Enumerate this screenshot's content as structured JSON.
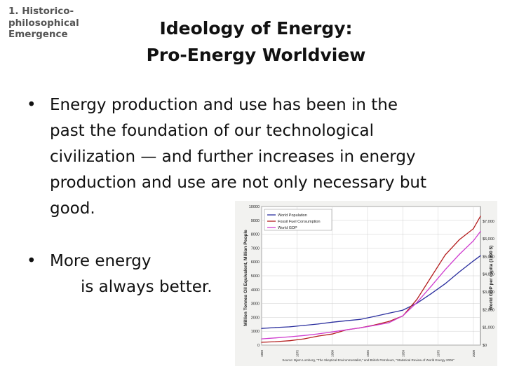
{
  "section_label": [
    "1. Historico-",
    "philosophical",
    "Emergence"
  ],
  "title": [
    "Ideology of Energy:",
    "Pro-Energy Worldview"
  ],
  "bullets": [
    {
      "lines": [
        "Energy production and use has been in the",
        "past the foundation of our technological",
        "civilization — and further increases in energy",
        "production and use are not only necessary but",
        "good."
      ]
    },
    {
      "lines": [
        "More energy",
        "is always better."
      ]
    }
  ],
  "bullet_symbol": "•",
  "chart_data": {
    "type": "line",
    "x": [
      1850,
      1860,
      1870,
      1880,
      1890,
      1900,
      1910,
      1920,
      1930,
      1940,
      1950,
      1960,
      1970,
      1980,
      1990,
      2000,
      2005
    ],
    "xlim": [
      1850,
      2005
    ],
    "x_ticks": [
      "1850",
      "1875",
      "1900",
      "1925",
      "1950",
      "1975",
      "2000"
    ],
    "ylim": [
      0,
      10000
    ],
    "y_ticks_left": [
      "0",
      "1000",
      "2000",
      "3000",
      "4000",
      "5000",
      "6000",
      "7000",
      "8000",
      "9000",
      "10000"
    ],
    "y_ticks_right": [
      "$0",
      "$1,000",
      "$2,000",
      "$3,000",
      "$4,000",
      "$5,000",
      "$6,000",
      "$7,000"
    ],
    "ylabel_left": "Million Tonnes Oil Equivalent, Million People",
    "ylabel_right": "World GDP per capita (1990 $)",
    "grid": true,
    "legend_position": "top-left",
    "series": [
      {
        "name": "World Population",
        "color": "#2b2f9e",
        "values": [
          1200,
          1270,
          1320,
          1420,
          1520,
          1650,
          1760,
          1860,
          2070,
          2300,
          2520,
          3020,
          3700,
          4430,
          5280,
          6070,
          6450
        ]
      },
      {
        "name": "Fossil Fuel Consumption",
        "color": "#b41e1e",
        "values": [
          200,
          250,
          320,
          450,
          650,
          800,
          1100,
          1250,
          1450,
          1700,
          2100,
          3300,
          4900,
          6500,
          7600,
          8400,
          9300
        ]
      },
      {
        "name": "World GDP",
        "color": "#cf3dcf",
        "values": [
          450,
          520,
          600,
          690,
          810,
          950,
          1100,
          1250,
          1420,
          1610,
          2110,
          3070,
          4230,
          5440,
          6540,
          7520,
          8200
        ]
      }
    ],
    "source": "Source: Bjørn Lomborg, \"The Skeptical Environmentalist,\" and British Petroleum, \"Statistical Review of World Energy 2006\""
  }
}
